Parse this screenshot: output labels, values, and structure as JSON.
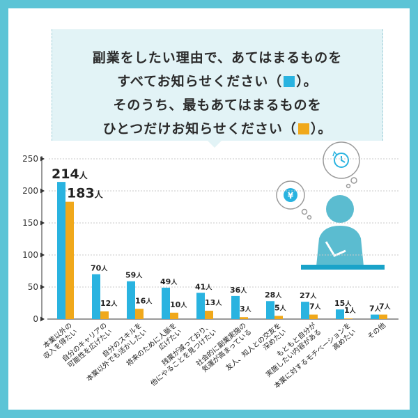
{
  "header": {
    "line1": "副業をしたい理由で、あてはまるものを",
    "line2_a": "すべてお知らせください（",
    "line2_b": "）。",
    "line3": "そのうち、最もあてはまるものを",
    "line4_a": "ひとつだけお知らせください（",
    "line4_b": "）。"
  },
  "illustration": {
    "coin_symbol": "¥"
  },
  "colors": {
    "all": "#29b3e0",
    "most": "#f0a81a",
    "frame": "#5cc4d6",
    "person": "#5bbcd0",
    "desk": "#1aa3c9"
  },
  "chart_data": {
    "type": "bar",
    "unit": "人",
    "ylim": [
      0,
      250
    ],
    "yticks": [
      0,
      50,
      100,
      150,
      200,
      250
    ],
    "categories": [
      [
        "本業以外の",
        "収入を得たい"
      ],
      [
        "自分のキャリアの",
        "可能性を広げたい"
      ],
      [
        "自分のスキルを",
        "本業以外でも活かしたい"
      ],
      [
        "将来のために人脈を",
        "広げたい"
      ],
      [
        "残業が減っており、",
        "他にやることを見つけたい"
      ],
      [
        "社会的に副業実施の",
        "気運が高まっている"
      ],
      [
        "友人、知人との交友を",
        "深めたい"
      ],
      [
        "もともと自分が",
        "実施したい内容がある"
      ],
      [
        "本業に対するモチベーションを",
        "高めたい"
      ],
      [
        "その他"
      ]
    ],
    "series": [
      {
        "values": [
          214,
          70,
          59,
          49,
          41,
          36,
          28,
          27,
          15,
          7
        ]
      },
      {
        "values": [
          183,
          12,
          16,
          10,
          13,
          3,
          5,
          7,
          1,
          7
        ]
      }
    ]
  }
}
